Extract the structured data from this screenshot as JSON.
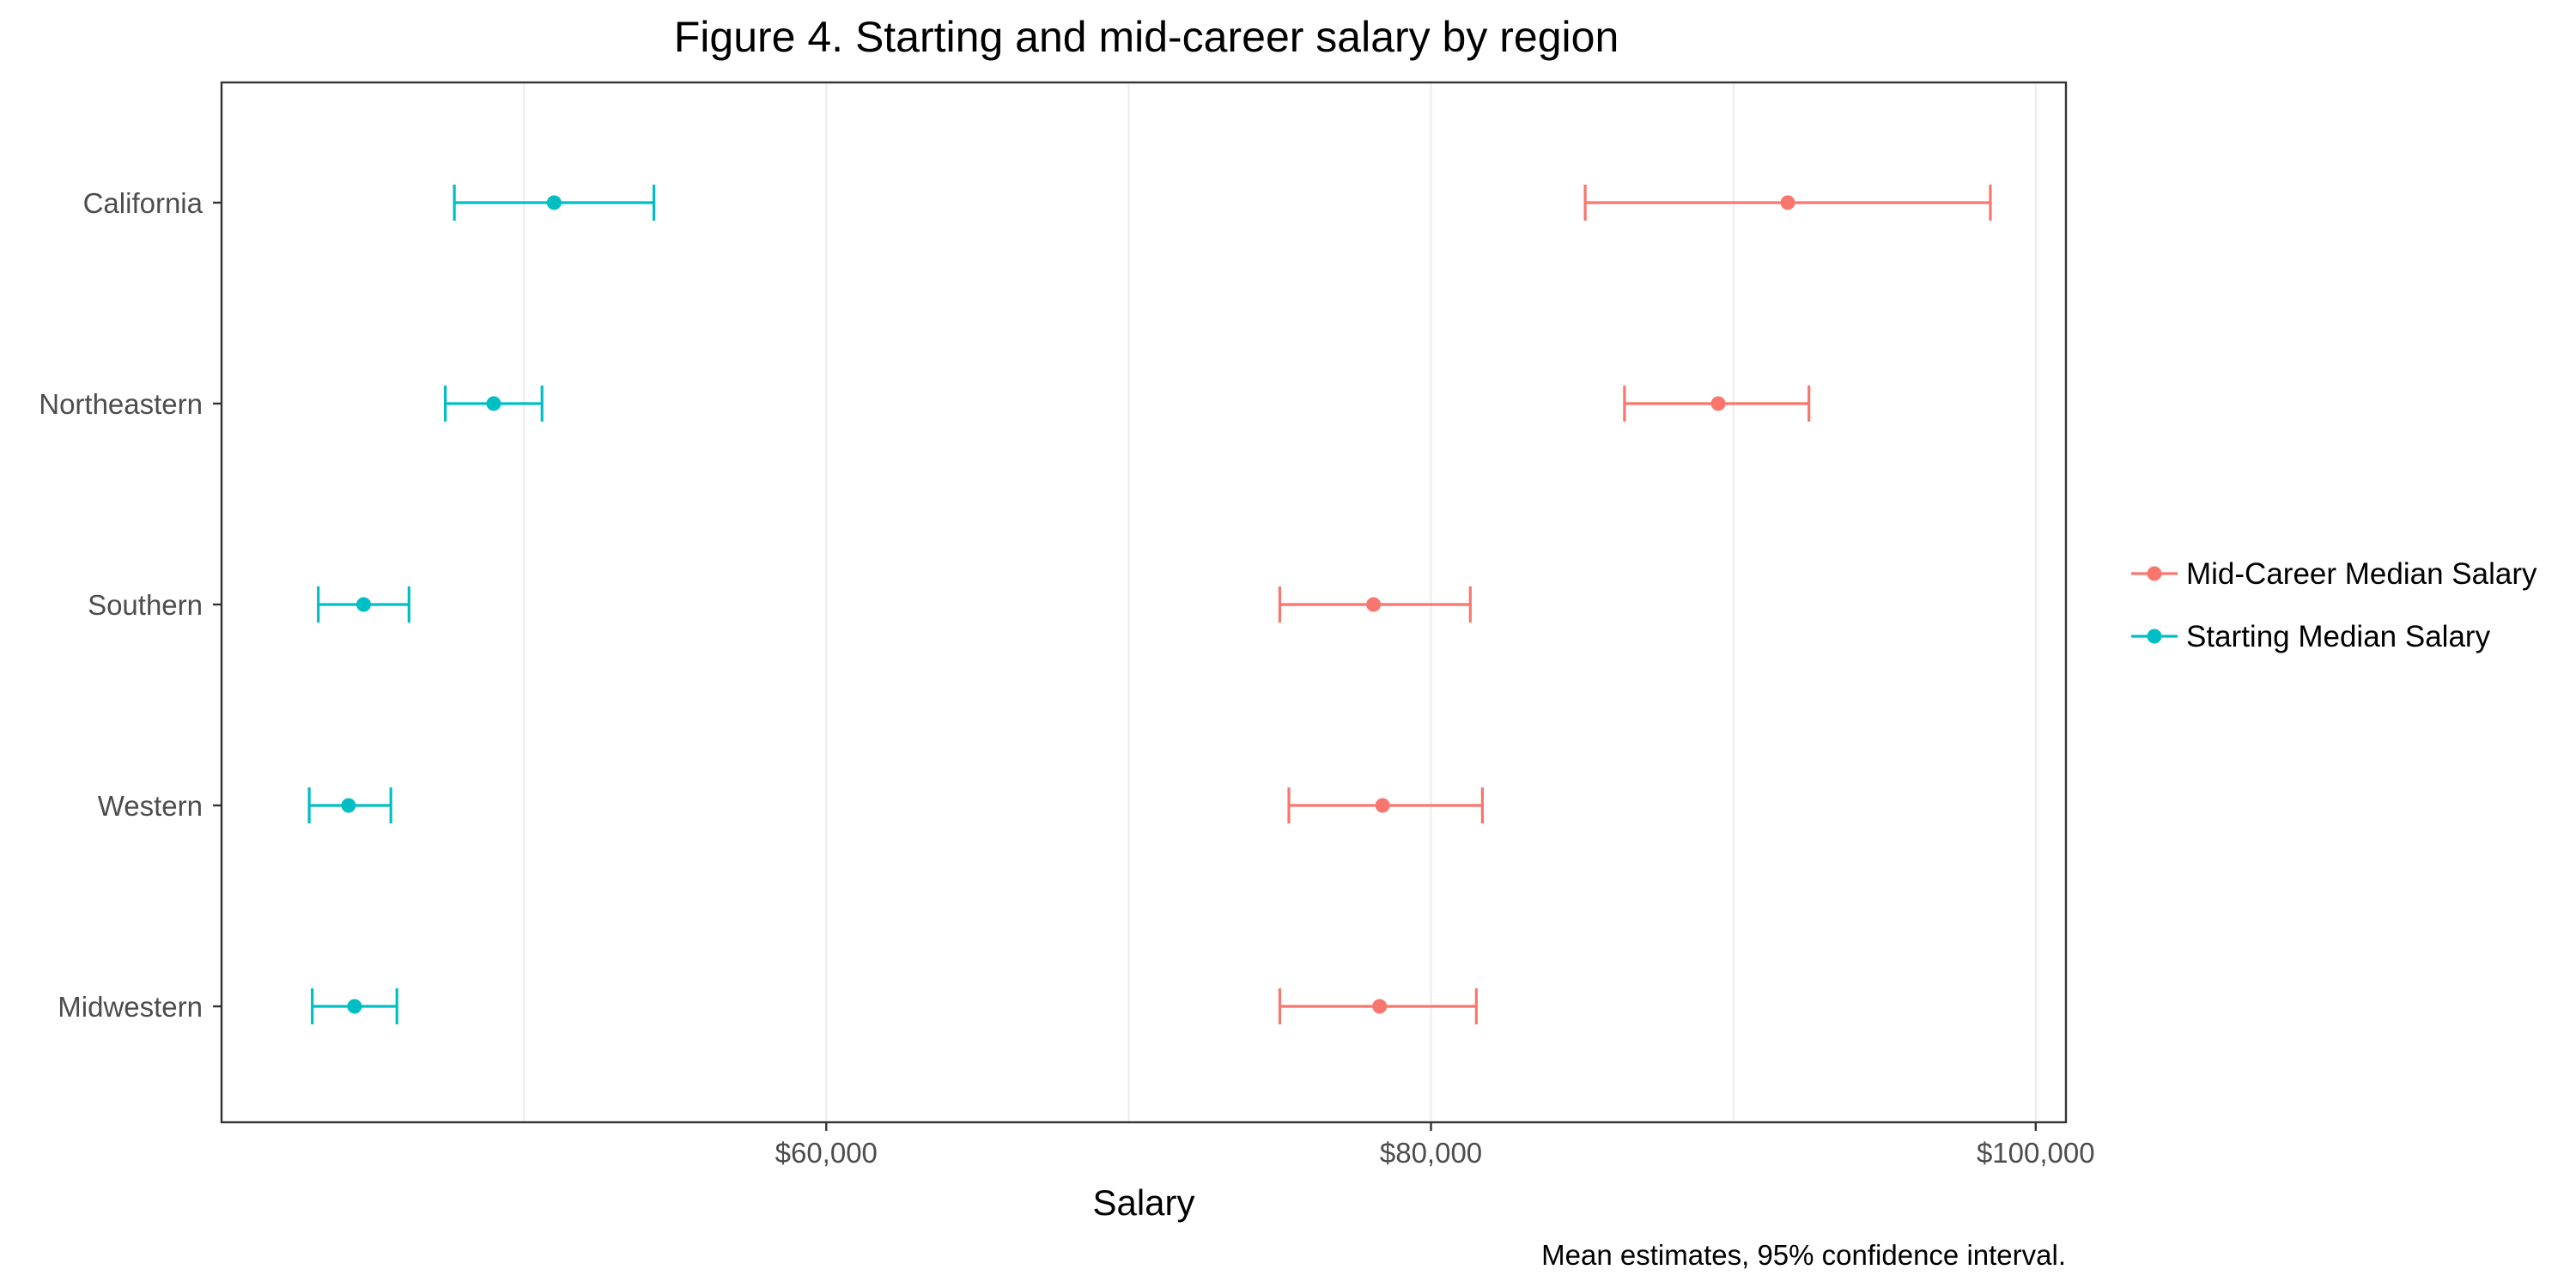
{
  "chart_data": {
    "type": "errorbar",
    "title": "Figure 4. Starting and mid-career salary by region",
    "xlabel": "Salary",
    "ylabel": "",
    "caption": "Mean estimates, 95% confidence interval.",
    "xlim": [
      40000,
      101000
    ],
    "x_ticks": [
      {
        "value": 60000,
        "label": "$60,000"
      },
      {
        "value": 80000,
        "label": "$80,000"
      },
      {
        "value": 100000,
        "label": "$100,000"
      }
    ],
    "x_minor_gridlines": [
      50000,
      70000,
      90000
    ],
    "categories": [
      "California",
      "Northeastern",
      "Southern",
      "Western",
      "Midwestern"
    ],
    "grid": "vertical",
    "legend": "right",
    "series": [
      {
        "name": "Mid-Career Median Salary",
        "color": "#F8766D",
        "estimates": [
          91800,
          89500,
          78100,
          78400,
          78300
        ],
        "ci_low": [
          85100,
          86400,
          75000,
          75300,
          75000
        ],
        "ci_high": [
          98500,
          92500,
          81300,
          81700,
          81500
        ]
      },
      {
        "name": "Starting Median Salary",
        "color": "#00BFC4",
        "estimates": [
          51000,
          49000,
          44700,
          44200,
          44400
        ],
        "ci_low": [
          47700,
          47400,
          43200,
          42900,
          43000
        ],
        "ci_high": [
          54300,
          50600,
          46200,
          45600,
          45800
        ]
      }
    ]
  }
}
